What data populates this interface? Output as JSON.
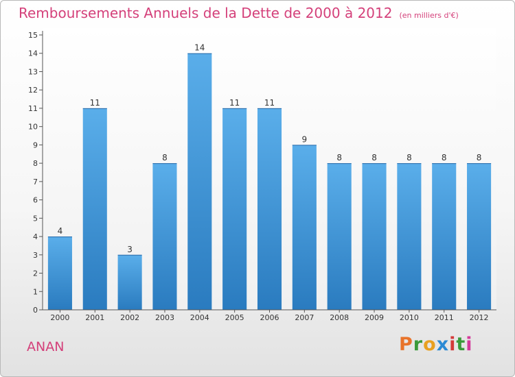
{
  "chart_data": {
    "type": "bar",
    "title": "Remboursements Annuels de la Dette de 2000 à 2012",
    "subtitle": "(en milliers d'€)",
    "categories": [
      "2000",
      "2001",
      "2002",
      "2003",
      "2004",
      "2005",
      "2006",
      "2007",
      "2008",
      "2009",
      "2010",
      "2011",
      "2012"
    ],
    "values": [
      4,
      11,
      3,
      8,
      14,
      11,
      11,
      9,
      8,
      8,
      8,
      8,
      8
    ],
    "ylim": [
      0,
      15
    ],
    "yticks": [
      0,
      1,
      2,
      3,
      4,
      5,
      6,
      7,
      8,
      9,
      10,
      11,
      12,
      13,
      14,
      15
    ],
    "grid": false,
    "bar_color_top": "#5aaeea",
    "bar_color_bottom": "#2a7bbf"
  },
  "footer": {
    "commune": "ANAN",
    "brand": "Proxiti",
    "brand_colors": [
      "#e8732a",
      "#3a9a3a",
      "#e8a020",
      "#2a8ad4",
      "#d43a3a",
      "#3a9a3a",
      "#d43a9a"
    ]
  }
}
